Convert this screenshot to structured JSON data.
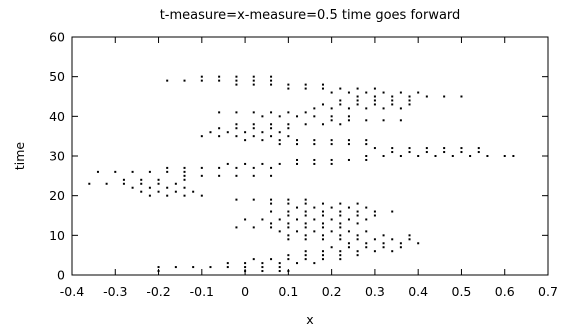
{
  "chart_data": {
    "type": "scatter",
    "title": "t-measure=x-measure=0.5  time goes forward",
    "xlabel": "x",
    "ylabel": "time",
    "xlim": [
      -0.4,
      0.7
    ],
    "ylim": [
      0,
      60
    ],
    "xticks": [
      "-0.4",
      "-0.3",
      "-0.2",
      "-0.1",
      "0",
      "0.1",
      "0.2",
      "0.3",
      "0.4",
      "0.5",
      "0.6",
      "0.7"
    ],
    "yticks": [
      "0",
      "10",
      "20",
      "30",
      "40",
      "50",
      "60"
    ],
    "grid": false,
    "legend": "none",
    "marker_color": "#000000",
    "series": [
      {
        "points": [
          [
            -0.2,
            1
          ],
          [
            0.0,
            1
          ],
          [
            0.04,
            1
          ],
          [
            0.08,
            1
          ],
          [
            0.1,
            1
          ],
          [
            -0.2,
            2
          ],
          [
            -0.16,
            2
          ],
          [
            -0.12,
            2
          ],
          [
            -0.08,
            2
          ],
          [
            -0.04,
            2
          ],
          [
            0.0,
            2
          ],
          [
            0.04,
            2
          ],
          [
            0.08,
            2
          ],
          [
            -0.04,
            3
          ],
          [
            0.0,
            3
          ],
          [
            0.04,
            3
          ],
          [
            0.08,
            3
          ],
          [
            0.12,
            3
          ],
          [
            0.16,
            3
          ],
          [
            0.02,
            4
          ],
          [
            0.06,
            4
          ],
          [
            0.1,
            4
          ],
          [
            0.14,
            4
          ],
          [
            0.18,
            4
          ],
          [
            0.22,
            4
          ],
          [
            0.1,
            5
          ],
          [
            0.14,
            5
          ],
          [
            0.18,
            5
          ],
          [
            0.22,
            5
          ],
          [
            0.26,
            5
          ],
          [
            0.14,
            6
          ],
          [
            0.18,
            6
          ],
          [
            0.22,
            6
          ],
          [
            0.26,
            6
          ],
          [
            0.3,
            6
          ],
          [
            0.34,
            6
          ],
          [
            0.2,
            7
          ],
          [
            0.24,
            7
          ],
          [
            0.28,
            7
          ],
          [
            0.32,
            7
          ],
          [
            0.36,
            7
          ],
          [
            0.24,
            8
          ],
          [
            0.28,
            8
          ],
          [
            0.32,
            8
          ],
          [
            0.36,
            8
          ],
          [
            0.4,
            8
          ],
          [
            0.1,
            9
          ],
          [
            0.14,
            9
          ],
          [
            0.18,
            9
          ],
          [
            0.22,
            9
          ],
          [
            0.26,
            9
          ],
          [
            0.3,
            9
          ],
          [
            0.34,
            9
          ],
          [
            0.38,
            9
          ],
          [
            0.1,
            10
          ],
          [
            0.14,
            10
          ],
          [
            0.18,
            10
          ],
          [
            0.22,
            10
          ],
          [
            0.26,
            10
          ],
          [
            0.32,
            10
          ],
          [
            0.38,
            10
          ],
          [
            0.08,
            11
          ],
          [
            0.12,
            11
          ],
          [
            0.16,
            11
          ],
          [
            0.2,
            11
          ],
          [
            0.24,
            11
          ],
          [
            0.28,
            11
          ],
          [
            -0.02,
            12
          ],
          [
            0.02,
            12
          ],
          [
            0.06,
            12
          ],
          [
            0.1,
            12
          ],
          [
            0.14,
            12
          ],
          [
            0.18,
            12
          ],
          [
            0.22,
            12
          ],
          [
            0.06,
            13
          ],
          [
            0.1,
            13
          ],
          [
            0.14,
            13
          ],
          [
            0.18,
            13
          ],
          [
            0.22,
            13
          ],
          [
            0.26,
            13
          ],
          [
            0.0,
            14
          ],
          [
            0.04,
            14
          ],
          [
            0.08,
            14
          ],
          [
            0.12,
            14
          ],
          [
            0.16,
            14
          ],
          [
            0.2,
            14
          ],
          [
            0.24,
            14
          ],
          [
            0.28,
            14
          ],
          [
            0.1,
            15
          ],
          [
            0.14,
            15
          ],
          [
            0.18,
            15
          ],
          [
            0.22,
            15
          ],
          [
            0.26,
            15
          ],
          [
            0.3,
            15
          ],
          [
            0.06,
            16
          ],
          [
            0.1,
            16
          ],
          [
            0.14,
            16
          ],
          [
            0.18,
            16
          ],
          [
            0.22,
            16
          ],
          [
            0.26,
            16
          ],
          [
            0.3,
            16
          ],
          [
            0.34,
            16
          ],
          [
            0.12,
            17
          ],
          [
            0.16,
            17
          ],
          [
            0.2,
            17
          ],
          [
            0.24,
            17
          ],
          [
            0.28,
            17
          ],
          [
            0.06,
            18
          ],
          [
            0.1,
            18
          ],
          [
            0.14,
            18
          ],
          [
            0.18,
            18
          ],
          [
            0.22,
            18
          ],
          [
            0.26,
            18
          ],
          [
            -0.02,
            19
          ],
          [
            0.02,
            19
          ],
          [
            0.06,
            19
          ],
          [
            0.1,
            19
          ],
          [
            0.14,
            19
          ],
          [
            -0.22,
            20
          ],
          [
            -0.18,
            20
          ],
          [
            -0.14,
            20
          ],
          [
            -0.1,
            20
          ],
          [
            -0.24,
            21
          ],
          [
            -0.2,
            21
          ],
          [
            -0.16,
            21
          ],
          [
            -0.12,
            21
          ],
          [
            -0.26,
            22
          ],
          [
            -0.22,
            22
          ],
          [
            -0.18,
            22
          ],
          [
            -0.14,
            22
          ],
          [
            -0.36,
            23
          ],
          [
            -0.32,
            23
          ],
          [
            -0.28,
            23
          ],
          [
            -0.24,
            23
          ],
          [
            -0.2,
            23
          ],
          [
            -0.16,
            23
          ],
          [
            -0.28,
            24
          ],
          [
            -0.24,
            24
          ],
          [
            -0.2,
            24
          ],
          [
            -0.14,
            24
          ],
          [
            -0.14,
            25
          ],
          [
            -0.1,
            25
          ],
          [
            -0.06,
            25
          ],
          [
            -0.02,
            25
          ],
          [
            0.02,
            25
          ],
          [
            0.06,
            25
          ],
          [
            -0.34,
            26
          ],
          [
            -0.3,
            26
          ],
          [
            -0.26,
            26
          ],
          [
            -0.22,
            26
          ],
          [
            -0.18,
            26
          ],
          [
            -0.14,
            26
          ],
          [
            -0.18,
            27
          ],
          [
            -0.14,
            27
          ],
          [
            -0.1,
            27
          ],
          [
            -0.06,
            27
          ],
          [
            -0.02,
            27
          ],
          [
            0.02,
            27
          ],
          [
            0.06,
            27
          ],
          [
            -0.04,
            28
          ],
          [
            0.0,
            28
          ],
          [
            0.04,
            28
          ],
          [
            0.08,
            28
          ],
          [
            0.12,
            28
          ],
          [
            0.16,
            28
          ],
          [
            0.2,
            28
          ],
          [
            0.12,
            29
          ],
          [
            0.16,
            29
          ],
          [
            0.2,
            29
          ],
          [
            0.24,
            29
          ],
          [
            0.28,
            29
          ],
          [
            0.28,
            30
          ],
          [
            0.32,
            30
          ],
          [
            0.36,
            30
          ],
          [
            0.4,
            30
          ],
          [
            0.44,
            30
          ],
          [
            0.48,
            30
          ],
          [
            0.52,
            30
          ],
          [
            0.56,
            30
          ],
          [
            0.6,
            30
          ],
          [
            0.62,
            30
          ],
          [
            0.34,
            31
          ],
          [
            0.38,
            31
          ],
          [
            0.42,
            31
          ],
          [
            0.46,
            31
          ],
          [
            0.5,
            31
          ],
          [
            0.54,
            31
          ],
          [
            0.3,
            32
          ],
          [
            0.34,
            32
          ],
          [
            0.38,
            32
          ],
          [
            0.42,
            32
          ],
          [
            0.46,
            32
          ],
          [
            0.5,
            32
          ],
          [
            0.54,
            32
          ],
          [
            0.08,
            33
          ],
          [
            0.12,
            33
          ],
          [
            0.16,
            33
          ],
          [
            0.2,
            33
          ],
          [
            0.24,
            33
          ],
          [
            0.28,
            33
          ],
          [
            0.0,
            34
          ],
          [
            0.04,
            34
          ],
          [
            0.08,
            34
          ],
          [
            0.12,
            34
          ],
          [
            0.16,
            34
          ],
          [
            0.2,
            34
          ],
          [
            0.24,
            34
          ],
          [
            0.28,
            34
          ],
          [
            -0.1,
            35
          ],
          [
            -0.06,
            35
          ],
          [
            -0.02,
            35
          ],
          [
            0.02,
            35
          ],
          [
            0.06,
            35
          ],
          [
            0.1,
            35
          ],
          [
            -0.08,
            36
          ],
          [
            -0.04,
            36
          ],
          [
            0.0,
            36
          ],
          [
            0.04,
            36
          ],
          [
            0.08,
            36
          ],
          [
            -0.06,
            37
          ],
          [
            -0.02,
            37
          ],
          [
            0.02,
            37
          ],
          [
            0.06,
            37
          ],
          [
            0.1,
            37
          ],
          [
            -0.02,
            38
          ],
          [
            0.02,
            38
          ],
          [
            0.06,
            38
          ],
          [
            0.1,
            38
          ],
          [
            0.14,
            38
          ],
          [
            0.18,
            38
          ],
          [
            0.22,
            38
          ],
          [
            0.2,
            39
          ],
          [
            0.24,
            39
          ],
          [
            0.28,
            39
          ],
          [
            0.32,
            39
          ],
          [
            0.36,
            39
          ],
          [
            0.04,
            40
          ],
          [
            0.08,
            40
          ],
          [
            0.12,
            40
          ],
          [
            0.16,
            40
          ],
          [
            0.2,
            40
          ],
          [
            0.24,
            40
          ],
          [
            -0.06,
            41
          ],
          [
            -0.02,
            41
          ],
          [
            0.02,
            41
          ],
          [
            0.06,
            41
          ],
          [
            0.1,
            41
          ],
          [
            0.14,
            41
          ],
          [
            0.16,
            42
          ],
          [
            0.2,
            42
          ],
          [
            0.24,
            42
          ],
          [
            0.28,
            42
          ],
          [
            0.32,
            42
          ],
          [
            0.36,
            42
          ],
          [
            0.18,
            43
          ],
          [
            0.22,
            43
          ],
          [
            0.26,
            43
          ],
          [
            0.3,
            43
          ],
          [
            0.34,
            43
          ],
          [
            0.38,
            43
          ],
          [
            0.22,
            44
          ],
          [
            0.26,
            44
          ],
          [
            0.3,
            44
          ],
          [
            0.34,
            44
          ],
          [
            0.38,
            44
          ],
          [
            0.26,
            45
          ],
          [
            0.3,
            45
          ],
          [
            0.34,
            45
          ],
          [
            0.38,
            45
          ],
          [
            0.42,
            45
          ],
          [
            0.46,
            45
          ],
          [
            0.5,
            45
          ],
          [
            0.2,
            46
          ],
          [
            0.24,
            46
          ],
          [
            0.28,
            46
          ],
          [
            0.32,
            46
          ],
          [
            0.36,
            46
          ],
          [
            0.4,
            46
          ],
          [
            0.1,
            47
          ],
          [
            0.14,
            47
          ],
          [
            0.18,
            47
          ],
          [
            0.22,
            47
          ],
          [
            0.26,
            47
          ],
          [
            0.3,
            47
          ],
          [
            -0.02,
            48
          ],
          [
            0.02,
            48
          ],
          [
            0.06,
            48
          ],
          [
            0.1,
            48
          ],
          [
            0.14,
            48
          ],
          [
            0.18,
            48
          ],
          [
            -0.18,
            49
          ],
          [
            -0.14,
            49
          ],
          [
            -0.1,
            49
          ],
          [
            -0.06,
            49
          ],
          [
            -0.02,
            49
          ],
          [
            0.02,
            49
          ],
          [
            0.06,
            49
          ],
          [
            -0.1,
            50
          ],
          [
            -0.06,
            50
          ],
          [
            -0.02,
            50
          ],
          [
            0.02,
            50
          ],
          [
            0.06,
            50
          ]
        ]
      }
    ]
  }
}
